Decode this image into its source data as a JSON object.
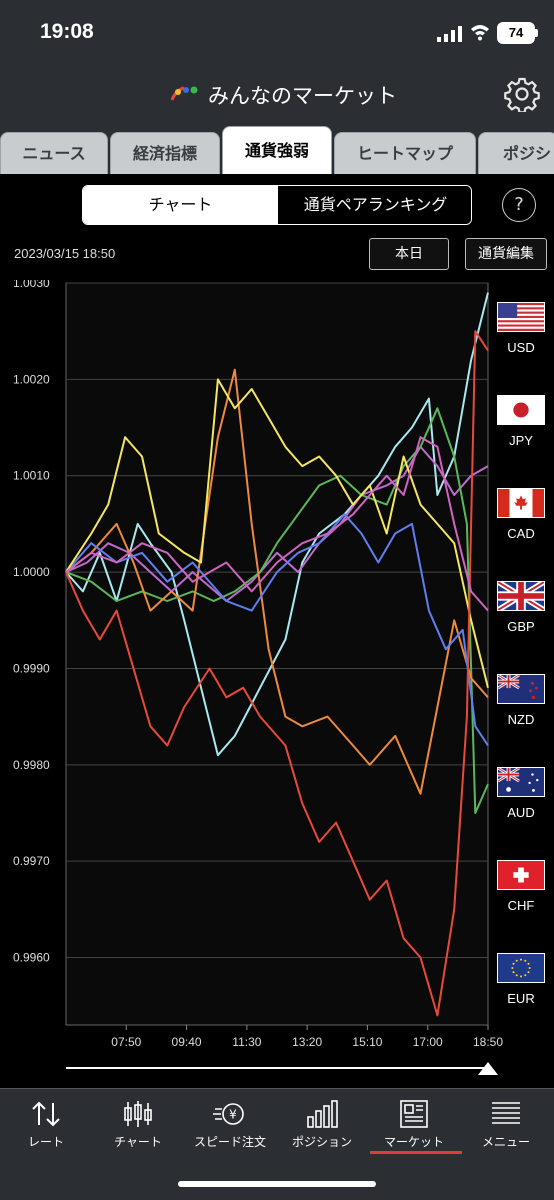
{
  "status_bar": {
    "time": "19:08",
    "battery": "74"
  },
  "header": {
    "title": "みんなのマーケット",
    "settings_icon": "gear-icon"
  },
  "tabs": [
    {
      "label": "ニュース"
    },
    {
      "label": "経済指標"
    },
    {
      "label": "通貨強弱",
      "active": true
    },
    {
      "label": "ヒートマップ"
    },
    {
      "label": "ポジシ"
    }
  ],
  "segmented": {
    "chart": "チャート",
    "ranking": "通貨ペアランキング",
    "selected": "chart"
  },
  "help_icon": "?",
  "datetime": "2023/03/15 18:50",
  "buttons": {
    "today": "本日",
    "edit_currency": "通貨編集"
  },
  "chart_data": {
    "type": "line",
    "y_ticks": [
      "1.0030",
      "1.0020",
      "1.0010",
      "1.0000",
      "0.9990",
      "0.9980",
      "0.9970",
      "0.9960"
    ],
    "x_ticks": [
      "07:50",
      "09:40",
      "11:30",
      "13:20",
      "15:10",
      "17:00",
      "18:50"
    ],
    "ylim": [
      0.9953,
      1.003
    ],
    "xlim": [
      0,
      100
    ],
    "grid": true,
    "series": [
      {
        "name": "USD",
        "color": "#a8e8f0",
        "values": [
          [
            0,
            1.0
          ],
          [
            4,
            0.9998
          ],
          [
            8,
            1.0002
          ],
          [
            12,
            0.9997
          ],
          [
            17,
            1.0005
          ],
          [
            20,
            1.0003
          ],
          [
            25,
            1.0
          ],
          [
            28,
            0.9995
          ],
          [
            36,
            0.9981
          ],
          [
            40,
            0.9983
          ],
          [
            46,
            0.9988
          ],
          [
            52,
            0.9993
          ],
          [
            56,
            1.0001
          ],
          [
            60,
            1.0004
          ],
          [
            66,
            1.0006
          ],
          [
            70,
            1.0008
          ],
          [
            74,
            1.001
          ],
          [
            78,
            1.0013
          ],
          [
            82,
            1.0015
          ],
          [
            86,
            1.0018
          ],
          [
            88,
            1.0008
          ],
          [
            92,
            1.0012
          ],
          [
            96,
            1.0022
          ],
          [
            100,
            1.0029
          ]
        ]
      },
      {
        "name": "JPY",
        "color": "#c06ad0",
        "values": [
          [
            0,
            1.0
          ],
          [
            5,
            1.0001
          ],
          [
            10,
            1.0003
          ],
          [
            15,
            1.0002
          ],
          [
            20,
            1.0
          ],
          [
            25,
            0.9998
          ],
          [
            30,
            1.0
          ],
          [
            38,
            0.9997
          ],
          [
            44,
            0.9999
          ],
          [
            50,
            1.0002
          ],
          [
            55,
            1.0
          ],
          [
            60,
            1.0003
          ],
          [
            65,
            1.0005
          ],
          [
            70,
            1.0008
          ],
          [
            76,
            1.0009
          ],
          [
            80,
            1.001
          ],
          [
            84,
            1.0013
          ],
          [
            88,
            1.0011
          ],
          [
            92,
            1.0008
          ],
          [
            96,
            1.001
          ],
          [
            100,
            1.0011
          ]
        ]
      },
      {
        "name": "CAD",
        "color": "#5bb85a",
        "values": [
          [
            0,
            1.0
          ],
          [
            6,
            0.9999
          ],
          [
            12,
            0.9997
          ],
          [
            18,
            0.9998
          ],
          [
            24,
            0.9997
          ],
          [
            30,
            0.9998
          ],
          [
            35,
            0.9997
          ],
          [
            40,
            0.9998
          ],
          [
            46,
            1.0
          ],
          [
            50,
            1.0003
          ],
          [
            55,
            1.0006
          ],
          [
            60,
            1.0009
          ],
          [
            65,
            1.001
          ],
          [
            70,
            1.0008
          ],
          [
            76,
            1.0007
          ],
          [
            80,
            1.0011
          ],
          [
            84,
            1.0013
          ],
          [
            88,
            1.0017
          ],
          [
            92,
            1.0012
          ],
          [
            95,
            1.0005
          ],
          [
            97,
            0.9975
          ],
          [
            100,
            0.9978
          ]
        ]
      },
      {
        "name": "GBP",
        "color": "#ee8a3c",
        "values": [
          [
            0,
            1.0
          ],
          [
            6,
            1.0002
          ],
          [
            12,
            1.0005
          ],
          [
            16,
            1.0001
          ],
          [
            20,
            0.9996
          ],
          [
            25,
            0.9998
          ],
          [
            30,
            0.9996
          ],
          [
            36,
            1.0014
          ],
          [
            40,
            1.0021
          ],
          [
            44,
            1.0005
          ],
          [
            48,
            0.9992
          ],
          [
            52,
            0.9985
          ],
          [
            56,
            0.9984
          ],
          [
            62,
            0.9985
          ],
          [
            68,
            0.9982
          ],
          [
            72,
            0.998
          ],
          [
            78,
            0.9983
          ],
          [
            84,
            0.9977
          ],
          [
            88,
            0.9986
          ],
          [
            92,
            0.9995
          ],
          [
            96,
            0.9989
          ],
          [
            100,
            0.9987
          ]
        ]
      },
      {
        "name": "NZD",
        "color": "#5f7ef0",
        "values": [
          [
            0,
            1.0
          ],
          [
            6,
            1.0003
          ],
          [
            12,
            1.0001
          ],
          [
            18,
            1.0002
          ],
          [
            24,
            0.9999
          ],
          [
            30,
            1.0001
          ],
          [
            38,
            0.9997
          ],
          [
            44,
            0.9996
          ],
          [
            50,
            1.0
          ],
          [
            55,
            1.0002
          ],
          [
            60,
            1.0003
          ],
          [
            66,
            1.0006
          ],
          [
            70,
            1.0004
          ],
          [
            74,
            1.0001
          ],
          [
            78,
            1.0004
          ],
          [
            82,
            1.0005
          ],
          [
            86,
            0.9996
          ],
          [
            90,
            0.9992
          ],
          [
            94,
            0.9994
          ],
          [
            97,
            0.9984
          ],
          [
            100,
            0.9982
          ]
        ]
      },
      {
        "name": "AUD",
        "color": "#f5e660",
        "values": [
          [
            0,
            1.0
          ],
          [
            6,
            1.0004
          ],
          [
            10,
            1.0007
          ],
          [
            14,
            1.0014
          ],
          [
            18,
            1.0012
          ],
          [
            22,
            1.0004
          ],
          [
            28,
            1.0002
          ],
          [
            32,
            1.0001
          ],
          [
            36,
            1.002
          ],
          [
            40,
            1.0017
          ],
          [
            44,
            1.0019
          ],
          [
            48,
            1.0016
          ],
          [
            52,
            1.0013
          ],
          [
            56,
            1.0011
          ],
          [
            60,
            1.0012
          ],
          [
            64,
            1.001
          ],
          [
            68,
            1.0007
          ],
          [
            72,
            1.0009
          ],
          [
            76,
            1.0004
          ],
          [
            80,
            1.0012
          ],
          [
            84,
            1.0007
          ],
          [
            88,
            1.0005
          ],
          [
            92,
            1.0003
          ],
          [
            96,
            0.9995
          ],
          [
            100,
            0.9988
          ]
        ]
      },
      {
        "name": "CHF",
        "color": "#e84a3a",
        "values": [
          [
            0,
            1.0
          ],
          [
            4,
            0.9996
          ],
          [
            8,
            0.9993
          ],
          [
            12,
            0.9996
          ],
          [
            16,
            0.999
          ],
          [
            20,
            0.9984
          ],
          [
            24,
            0.9982
          ],
          [
            28,
            0.9986
          ],
          [
            34,
            0.999
          ],
          [
            38,
            0.9987
          ],
          [
            42,
            0.9988
          ],
          [
            46,
            0.9985
          ],
          [
            52,
            0.9982
          ],
          [
            56,
            0.9976
          ],
          [
            60,
            0.9972
          ],
          [
            64,
            0.9974
          ],
          [
            68,
            0.997
          ],
          [
            72,
            0.9966
          ],
          [
            76,
            0.9968
          ],
          [
            80,
            0.9962
          ],
          [
            84,
            0.996
          ],
          [
            88,
            0.9954
          ],
          [
            92,
            0.9965
          ],
          [
            95,
            0.9985
          ],
          [
            97,
            1.0025
          ],
          [
            100,
            1.0023
          ]
        ]
      },
      {
        "name": "EUR",
        "color": "#d064c0",
        "values": [
          [
            0,
            1.0
          ],
          [
            6,
            1.0002
          ],
          [
            12,
            1.0001
          ],
          [
            18,
            1.0003
          ],
          [
            24,
            1.0002
          ],
          [
            30,
            0.9999
          ],
          [
            38,
            1.0001
          ],
          [
            44,
            0.9998
          ],
          [
            50,
            1.0001
          ],
          [
            56,
            1.0003
          ],
          [
            62,
            1.0004
          ],
          [
            68,
            1.0006
          ],
          [
            72,
            1.0008
          ],
          [
            76,
            1.001
          ],
          [
            80,
            1.0008
          ],
          [
            84,
            1.0014
          ],
          [
            88,
            1.0013
          ],
          [
            92,
            1.0005
          ],
          [
            96,
            0.9998
          ],
          [
            100,
            0.9996
          ]
        ]
      }
    ]
  },
  "flags": [
    {
      "code": "USD"
    },
    {
      "code": "JPY"
    },
    {
      "code": "CAD"
    },
    {
      "code": "GBP"
    },
    {
      "code": "NZD"
    },
    {
      "code": "AUD"
    },
    {
      "code": "CHF"
    },
    {
      "code": "EUR"
    }
  ],
  "bottom_nav": [
    {
      "label": "レート",
      "icon": "rate-arrows-icon"
    },
    {
      "label": "チャート",
      "icon": "candlestick-icon"
    },
    {
      "label": "スピード注文",
      "icon": "speed-order-icon"
    },
    {
      "label": "ポジション",
      "icon": "position-bars-icon"
    },
    {
      "label": "マーケット",
      "icon": "market-news-icon",
      "active": true
    },
    {
      "label": "メニュー",
      "icon": "menu-lines-icon"
    }
  ]
}
